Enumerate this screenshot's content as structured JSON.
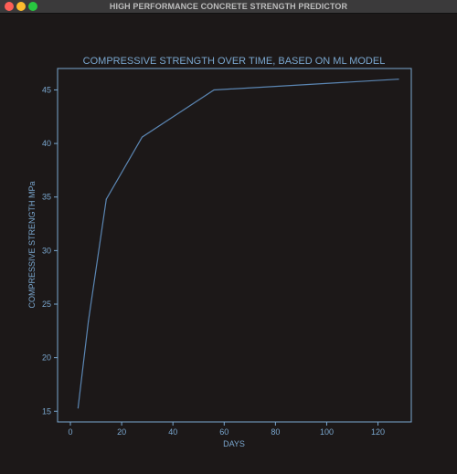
{
  "window": {
    "title": "HIGH PERFORMANCE CONCRETE STRENGTH PREDICTOR"
  },
  "colors": {
    "background": "#1c1818",
    "accent": "#7aa7cf",
    "line": "#5b86b3"
  },
  "chart_data": {
    "type": "line",
    "title": "COMPRESSIVE STRENGTH OVER TIME, BASED ON ML MODEL",
    "xlabel": "DAYS",
    "ylabel": "COMPRESSIVE STRENGTH MPa",
    "xlim": [
      -5,
      133
    ],
    "ylim": [
      14,
      47
    ],
    "xticks": [
      0,
      20,
      40,
      60,
      80,
      100,
      120
    ],
    "yticks": [
      15,
      20,
      25,
      30,
      35,
      40,
      45
    ],
    "grid": false,
    "series": [
      {
        "x": [
          3,
          7,
          14,
          28,
          56,
          128
        ],
        "y": [
          15.3,
          23.4,
          34.8,
          40.6,
          45.0,
          46.0
        ]
      }
    ]
  }
}
